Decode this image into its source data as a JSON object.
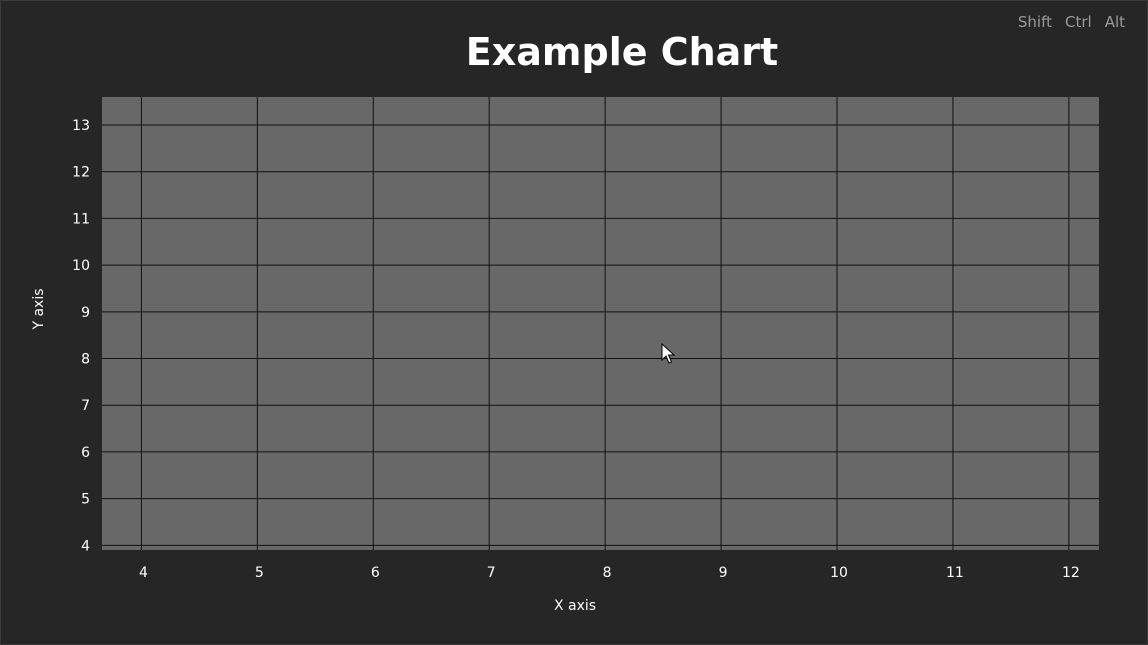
{
  "modifiers": [
    "Shift",
    "Ctrl",
    "Alt"
  ],
  "colors": {
    "background": "#262626",
    "plot_area": "#686868",
    "grid": "#111111",
    "text": "#ffffff",
    "modifier_text": "#9a9a9a"
  },
  "chart_data": {
    "type": "scatter",
    "title": "Example Chart",
    "xlabel": "X axis",
    "ylabel": "Y axis",
    "xlim": [
      3.66,
      12.26
    ],
    "ylim": [
      3.9,
      13.6
    ],
    "x_ticks": [
      4,
      5,
      6,
      7,
      8,
      9,
      10,
      11,
      12
    ],
    "y_ticks": [
      4,
      5,
      6,
      7,
      8,
      9,
      10,
      11,
      12,
      13
    ],
    "grid": true,
    "series": [],
    "legend": "none"
  }
}
